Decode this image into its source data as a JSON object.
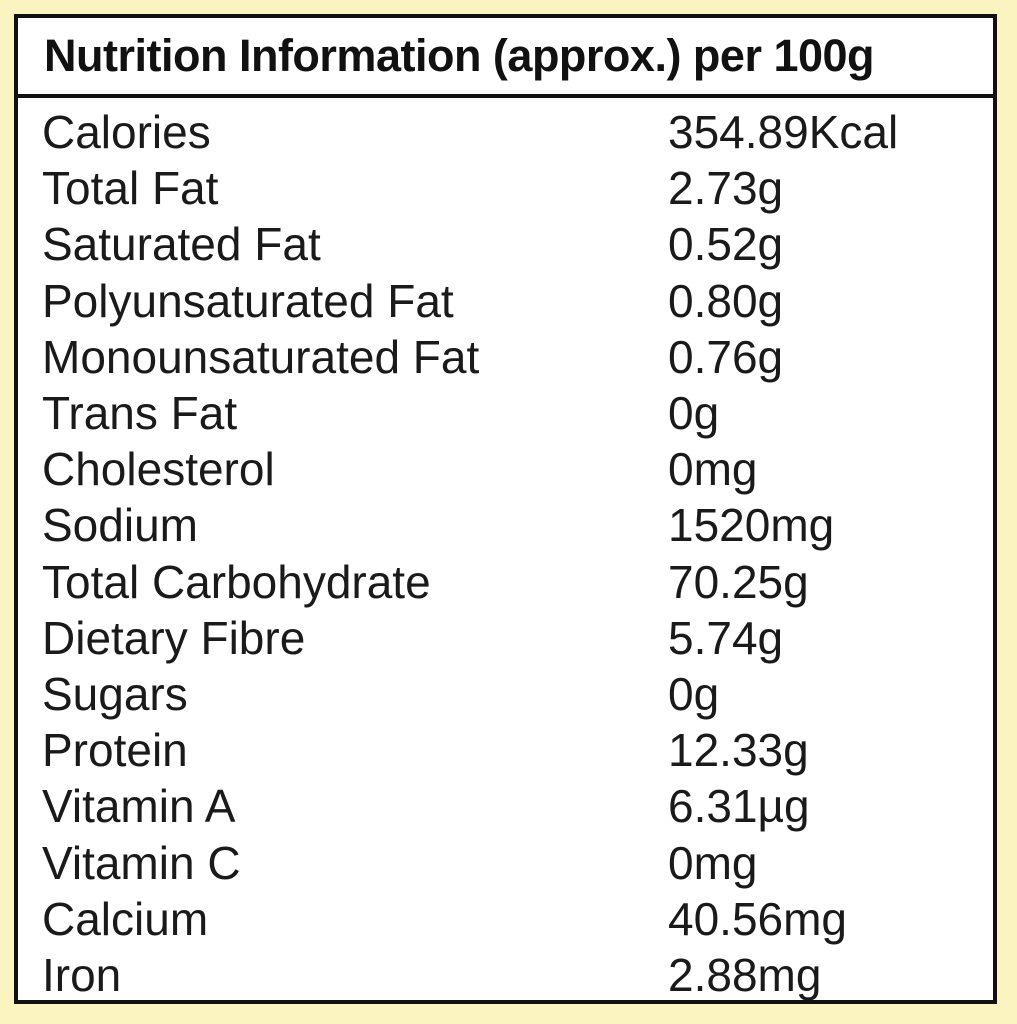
{
  "title": "Nutrition Information (approx.) per 100g",
  "rows": [
    {
      "label": "Calories",
      "value": "354.89Kcal"
    },
    {
      "label": "Total Fat",
      "value": "2.73g"
    },
    {
      "label": "Saturated Fat",
      "value": "0.52g"
    },
    {
      "label": "Polyunsaturated Fat",
      "value": "0.80g"
    },
    {
      "label": "Monounsaturated Fat",
      "value": "0.76g"
    },
    {
      "label": "Trans Fat",
      "value": "0g"
    },
    {
      "label": "Cholesterol",
      "value": "0mg"
    },
    {
      "label": "Sodium",
      "value": "1520mg"
    },
    {
      "label": "Total Carbohydrate",
      "value": "70.25g"
    },
    {
      "label": "Dietary Fibre",
      "value": "5.74g"
    },
    {
      "label": "Sugars",
      "value": "0g"
    },
    {
      "label": "Protein",
      "value": "12.33g"
    },
    {
      "label": "Vitamin A",
      "value": "6.31µg"
    },
    {
      "label": "Vitamin C",
      "value": "0mg"
    },
    {
      "label": "Calcium",
      "value": "40.56mg"
    },
    {
      "label": "Iron",
      "value": "2.88mg"
    }
  ],
  "colors": {
    "background": "#fbf3c0",
    "panel": "#ffffff",
    "border": "#111111",
    "text": "#1a1a1a"
  }
}
